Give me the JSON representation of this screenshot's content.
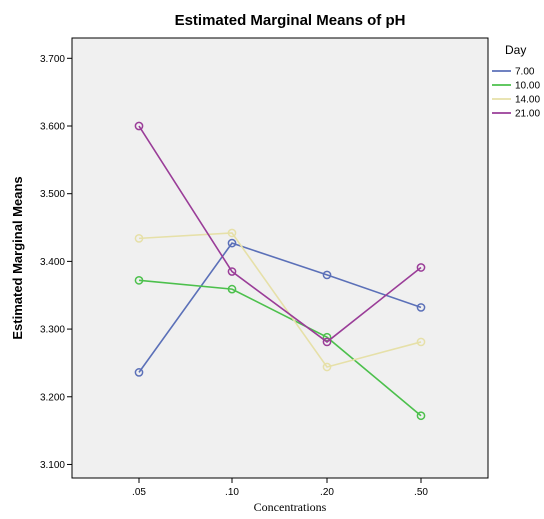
{
  "chart_data": {
    "type": "line",
    "title": "Estimated Marginal Means of pH",
    "xlabel": "Concentrations",
    "ylabel": "Estimated Marginal Means",
    "categories": [
      ".05",
      ".10",
      ".20",
      ".50"
    ],
    "ylim": [
      3.08,
      3.73
    ],
    "yticks": [
      "3.100",
      "3.200",
      "3.300",
      "3.400",
      "3.500",
      "3.600",
      "3.700"
    ],
    "grid": false,
    "plot_background": "#f0f0f0",
    "legend": {
      "title": "Day",
      "position": "right"
    },
    "series": [
      {
        "name": "7.00",
        "color": "#5b70b8",
        "values": [
          3.236,
          3.427,
          3.38,
          3.332
        ]
      },
      {
        "name": "10.00",
        "color": "#4cc04c",
        "values": [
          3.372,
          3.359,
          3.288,
          3.172
        ]
      },
      {
        "name": "14.00",
        "color": "#e6e0a8",
        "values": [
          3.434,
          3.442,
          3.244,
          3.281
        ]
      },
      {
        "name": "21.00",
        "color": "#9a3d98",
        "values": [
          3.6,
          3.385,
          3.281,
          3.391
        ]
      }
    ]
  }
}
